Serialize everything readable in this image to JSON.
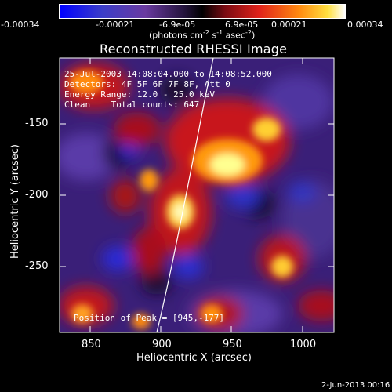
{
  "colorbar": {
    "ticks": [
      "-0.00034",
      "-0.00021",
      "-6.9e-05",
      "6.9e-05",
      "0.00021",
      "0.00034"
    ],
    "units_main": "(photons cm",
    "units_sup1": "-2",
    "units_mid1": " s",
    "units_sup2": "-1",
    "units_mid2": " asec",
    "units_sup3": "-2",
    "units_end": ")"
  },
  "title": "Reconstructed RHESSI Image",
  "overlay": {
    "time": "25-Jul-2003 14:08:04.000 to 14:08:52.000",
    "detectors": "Detectors: 4F 5F 6F 7F 8F, Att 0",
    "energy": "Energy Range: 12.0 - 25.0 keV",
    "clean": "Clean    Total counts: 647",
    "peak": "Position of Peak = [945,-177]"
  },
  "axes": {
    "xlabel": "Heliocentric X (arcsec)",
    "ylabel": "Heliocentric Y (arcsec)",
    "xticks": [
      "850",
      "900",
      "950",
      "1000"
    ],
    "yticks": [
      "-150",
      "-200",
      "-250"
    ]
  },
  "footer": "2-Jun-2013 00:16",
  "colors": {
    "background": "#000000",
    "foreground": "#ffffff",
    "colormap": [
      "#0000ff",
      "#3f2a9c",
      "#1a1030",
      "#000000",
      "#6a0a10",
      "#e0221a",
      "#ff9a10",
      "#ffff80",
      "#ffffff"
    ]
  }
}
